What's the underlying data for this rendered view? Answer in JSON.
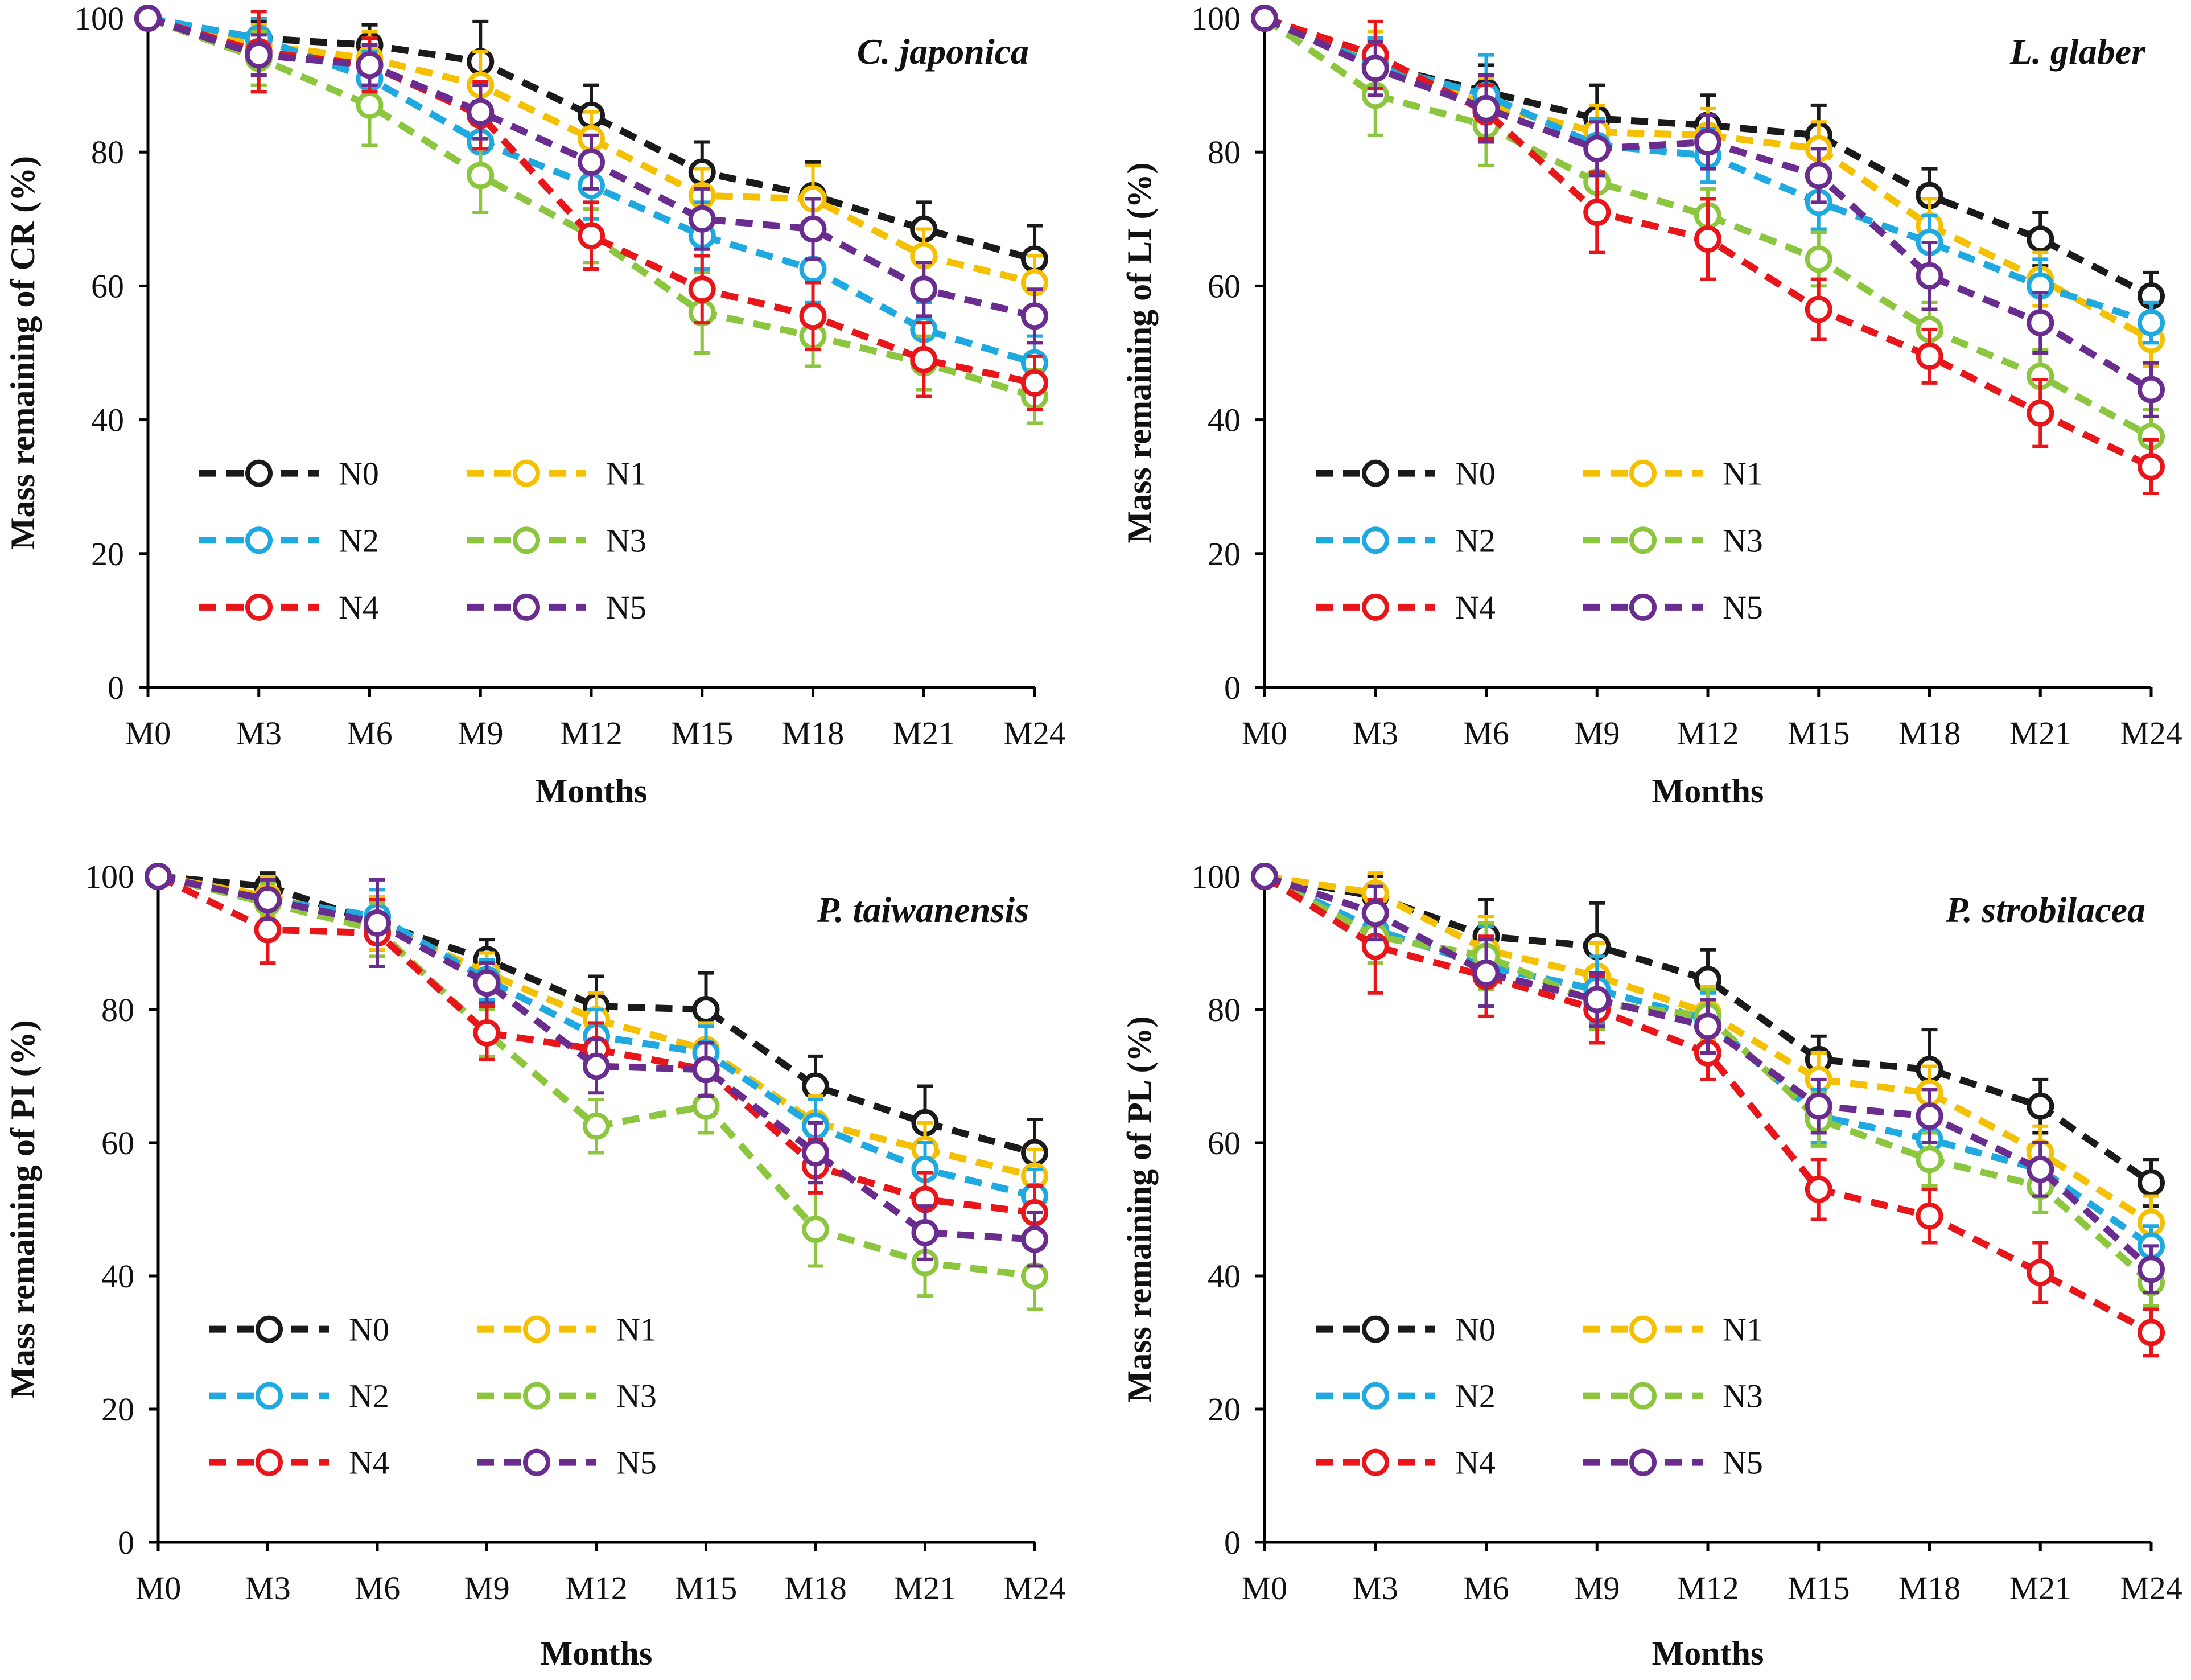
{
  "chart_data": [
    {
      "type": "line",
      "title": "C. japonica",
      "xlabel": "Months",
      "ylabel": "Mass remaining of  CR (%)",
      "ylim": [
        0,
        100
      ],
      "yticks": [
        "0",
        "20",
        "40",
        "60",
        "80",
        "100"
      ],
      "categories": [
        "M0",
        "M3",
        "M6",
        "M9",
        "M12",
        "M15",
        "M18",
        "M21",
        "M24"
      ],
      "legend_position": "lower-left",
      "series": [
        {
          "name": "N0",
          "color": "#1a1a1a",
          "values": [
            100,
            97,
            96,
            93.5,
            85.5,
            77,
            73.5,
            68.5,
            64
          ],
          "errors": [
            0,
            2.5,
            3,
            6,
            4.5,
            4.5,
            5,
            4,
            5
          ]
        },
        {
          "name": "N1",
          "color": "#f5c000",
          "values": [
            100,
            96,
            94,
            90,
            82,
            73.5,
            73,
            64.5,
            60.5
          ],
          "errors": [
            0,
            3,
            4,
            5,
            4,
            4,
            5,
            4,
            4
          ]
        },
        {
          "name": "N2",
          "color": "#1fa9e1",
          "values": [
            100,
            97,
            91,
            81.5,
            75,
            67.5,
            62.5,
            53.5,
            48.5
          ],
          "errors": [
            0,
            3,
            4,
            5,
            5,
            5,
            5,
            4,
            4
          ]
        },
        {
          "name": "N3",
          "color": "#8cc63f",
          "values": [
            100,
            94,
            87,
            76.5,
            67.5,
            56,
            52.5,
            48.5,
            43.5
          ],
          "errors": [
            0,
            4,
            6,
            5.5,
            4,
            6,
            4.5,
            4,
            4
          ]
        },
        {
          "name": "N4",
          "color": "#e8161b",
          "values": [
            100,
            95,
            93,
            85.5,
            67.5,
            59.5,
            55.5,
            49,
            45.5
          ],
          "errors": [
            0,
            6,
            4,
            5,
            5,
            5,
            5,
            5.5,
            4
          ]
        },
        {
          "name": "N5",
          "color": "#6a2c8f",
          "values": [
            100,
            94.5,
            93,
            86,
            78.5,
            70,
            68.5,
            59.5,
            55.5
          ],
          "errors": [
            0,
            3,
            3,
            4,
            4,
            4.5,
            4.5,
            4,
            4
          ]
        }
      ]
    },
    {
      "type": "line",
      "title": "L. glaber",
      "xlabel": "Months",
      "ylabel": "Mass remaining of  LI (%)",
      "ylim": [
        0,
        100
      ],
      "yticks": [
        "0",
        "20",
        "40",
        "60",
        "80",
        "100"
      ],
      "categories": [
        "M0",
        "M3",
        "M6",
        "M9",
        "M12",
        "M15",
        "M18",
        "M21",
        "M24"
      ],
      "legend_position": "lower-left",
      "series": [
        {
          "name": "N0",
          "color": "#1a1a1a",
          "values": [
            100,
            93,
            89,
            85,
            84,
            82.5,
            73.5,
            67,
            58.5
          ],
          "errors": [
            0,
            4,
            4,
            5,
            4.5,
            4.5,
            4,
            4,
            3.5
          ]
        },
        {
          "name": "N1",
          "color": "#f5c000",
          "values": [
            100,
            94,
            87,
            83,
            82.5,
            80.5,
            69,
            61,
            52
          ],
          "errors": [
            0,
            4,
            4,
            4,
            4,
            4,
            4,
            4,
            4
          ]
        },
        {
          "name": "N2",
          "color": "#1fa9e1",
          "values": [
            100,
            93,
            88.5,
            81,
            79.5,
            72.5,
            66.5,
            60,
            54.5
          ],
          "errors": [
            0,
            4,
            6,
            4,
            4,
            4,
            4,
            4,
            3
          ]
        },
        {
          "name": "N3",
          "color": "#8cc63f",
          "values": [
            100,
            88.5,
            84,
            75.5,
            70.5,
            64,
            53.5,
            46.5,
            37.5
          ],
          "errors": [
            0,
            6,
            6,
            4,
            4,
            4,
            4,
            4,
            4
          ]
        },
        {
          "name": "N4",
          "color": "#e8161b",
          "values": [
            100,
            94.5,
            86,
            71,
            67,
            56.5,
            49.5,
            41,
            33
          ],
          "errors": [
            0,
            5,
            4,
            6,
            6,
            4.5,
            4,
            5,
            4
          ]
        },
        {
          "name": "N5",
          "color": "#6a2c8f",
          "values": [
            100,
            92.5,
            86.5,
            80.5,
            81.5,
            76.5,
            61.5,
            54.5,
            44.5
          ],
          "errors": [
            0,
            4,
            5,
            4,
            4,
            4,
            5,
            4.5,
            4
          ]
        }
      ]
    },
    {
      "type": "line",
      "title": "P. taiwanensis",
      "xlabel": "Months",
      "ylabel": "Mass remaining of  PI (%)",
      "ylim": [
        0,
        100
      ],
      "yticks": [
        "0",
        "20",
        "40",
        "60",
        "80",
        "100"
      ],
      "categories": [
        "M0",
        "M3",
        "M6",
        "M9",
        "M12",
        "M15",
        "M18",
        "M21",
        "M24"
      ],
      "legend_position": "lower-left",
      "series": [
        {
          "name": "N0",
          "color": "#1a1a1a",
          "values": [
            100,
            98.5,
            93,
            87.5,
            80.5,
            80,
            68.5,
            63,
            58.5
          ],
          "errors": [
            0,
            2,
            4,
            3,
            4.5,
            5.5,
            4.5,
            5.5,
            5
          ]
        },
        {
          "name": "N1",
          "color": "#f5c000",
          "values": [
            100,
            97,
            93,
            85.5,
            78.5,
            74,
            63,
            59,
            55
          ],
          "errors": [
            0,
            3,
            4,
            3,
            4,
            4,
            4,
            4,
            4
          ]
        },
        {
          "name": "N2",
          "color": "#1fa9e1",
          "values": [
            100,
            96.5,
            94,
            84.5,
            76,
            73.5,
            62.5,
            56,
            52
          ],
          "errors": [
            0,
            3,
            4,
            3,
            4,
            4,
            4,
            4,
            4
          ]
        },
        {
          "name": "N3",
          "color": "#8cc63f",
          "values": [
            100,
            96,
            92,
            76.5,
            62.5,
            65.5,
            47,
            42,
            40
          ],
          "errors": [
            0,
            3,
            4,
            3.5,
            4,
            4,
            5.5,
            5,
            5
          ]
        },
        {
          "name": "N4",
          "color": "#e8161b",
          "values": [
            100,
            92,
            91.5,
            76.5,
            74,
            71,
            56.5,
            51.5,
            49.5
          ],
          "errors": [
            0,
            5,
            5,
            4,
            4,
            4,
            4,
            4,
            4
          ]
        },
        {
          "name": "N5",
          "color": "#6a2c8f",
          "values": [
            100,
            96.5,
            93,
            84,
            71.5,
            71,
            58.5,
            46.5,
            45.5
          ],
          "errors": [
            0,
            3,
            6.5,
            3,
            4,
            4,
            4.5,
            4,
            4
          ]
        }
      ]
    },
    {
      "type": "line",
      "title": "P. strobilacea",
      "xlabel": "Months",
      "ylabel": "Mass remaining of  PL (%)",
      "ylim": [
        0,
        100
      ],
      "yticks": [
        "0",
        "20",
        "40",
        "60",
        "80",
        "100"
      ],
      "categories": [
        "M0",
        "M3",
        "M6",
        "M9",
        "M12",
        "M15",
        "M18",
        "M21",
        "M24"
      ],
      "legend_position": "lower-left",
      "series": [
        {
          "name": "N0",
          "color": "#1a1a1a",
          "values": [
            100,
            97,
            91,
            89.5,
            84.5,
            72.5,
            71,
            65.5,
            54
          ],
          "errors": [
            0,
            3,
            5.5,
            6.5,
            4.5,
            3.5,
            6,
            4,
            3.5
          ]
        },
        {
          "name": "N1",
          "color": "#f5c000",
          "values": [
            100,
            97.5,
            89,
            85,
            79.5,
            69.5,
            67.5,
            58.5,
            48
          ],
          "errors": [
            0,
            3,
            5,
            5,
            4,
            4,
            4,
            4,
            4
          ]
        },
        {
          "name": "N2",
          "color": "#1fa9e1",
          "values": [
            100,
            92,
            86.5,
            83,
            78.5,
            64,
            60.5,
            56,
            44.5
          ],
          "errors": [
            0,
            4,
            6,
            5,
            4,
            4,
            4,
            4,
            3
          ]
        },
        {
          "name": "N3",
          "color": "#8cc63f",
          "values": [
            100,
            91,
            88,
            81,
            79,
            63.5,
            57.5,
            53.5,
            39
          ],
          "errors": [
            0,
            4,
            5,
            4,
            4,
            4,
            4,
            4,
            3.5
          ]
        },
        {
          "name": "N4",
          "color": "#e8161b",
          "values": [
            100,
            89.5,
            85,
            80,
            73.5,
            53,
            49,
            40.5,
            31.5
          ],
          "errors": [
            0,
            7,
            6,
            5,
            4,
            4.5,
            4,
            4.5,
            3.5
          ]
        },
        {
          "name": "N5",
          "color": "#6a2c8f",
          "values": [
            100,
            94.5,
            85.5,
            81.5,
            77.5,
            65.5,
            64,
            56,
            41
          ],
          "errors": [
            0,
            4,
            5,
            4,
            4,
            4,
            4,
            4,
            3.5
          ]
        }
      ]
    }
  ]
}
